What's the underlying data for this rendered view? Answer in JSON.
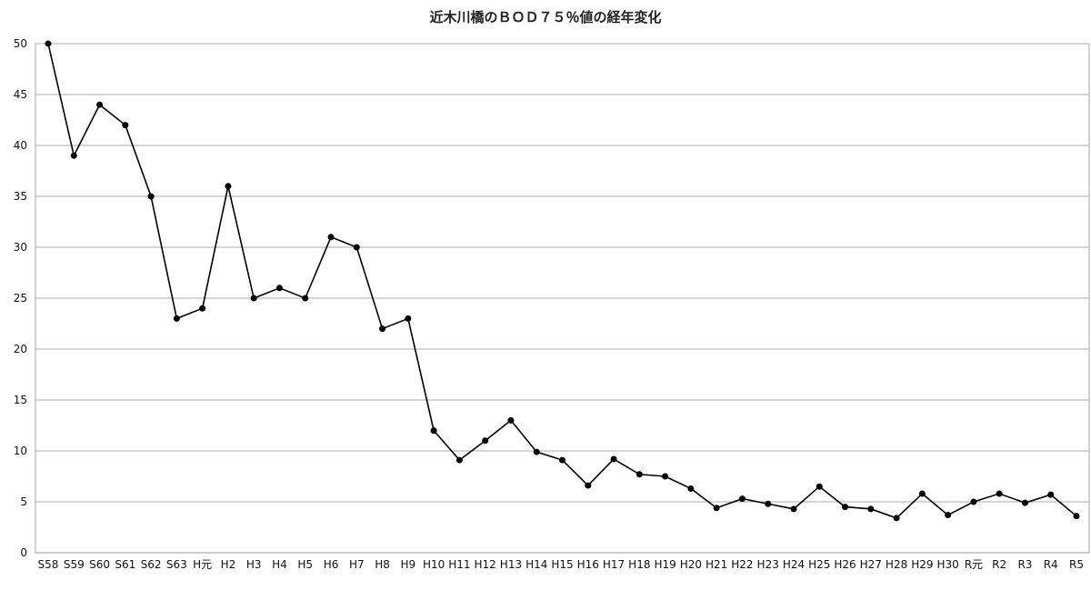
{
  "chart_data": {
    "type": "line",
    "title": "近木川橋のＢＯＤ７５％値の経年変化",
    "xlabel": "",
    "ylabel": "",
    "ylim": [
      0,
      50
    ],
    "yticks": [
      0,
      5,
      10,
      15,
      20,
      25,
      30,
      35,
      40,
      45,
      50
    ],
    "grid": true,
    "legend": "none",
    "line_color": "#000000",
    "categories": [
      "S58",
      "S59",
      "S60",
      "S61",
      "S62",
      "S63",
      "H元",
      "H2",
      "H3",
      "H4",
      "H5",
      "H6",
      "H7",
      "H8",
      "H9",
      "H10",
      "H11",
      "H12",
      "H13",
      "H14",
      "H15",
      "H16",
      "H17",
      "H18",
      "H19",
      "H20",
      "H21",
      "H22",
      "H23",
      "H24",
      "H25",
      "H26",
      "H27",
      "H28",
      "H29",
      "H30",
      "R元",
      "R2",
      "R3",
      "R4",
      "R5"
    ],
    "values": [
      50,
      39,
      44,
      42,
      35,
      23,
      24,
      36,
      25,
      26,
      25,
      31,
      30,
      22,
      23,
      12,
      9.1,
      11,
      13,
      9.9,
      9.1,
      6.6,
      9.2,
      7.7,
      7.5,
      6.3,
      4.4,
      5.3,
      4.8,
      4.3,
      6.5,
      4.5,
      4.3,
      3.4,
      5.8,
      3.7,
      5.0,
      5.8,
      4.9,
      5.7,
      3.6
    ]
  }
}
